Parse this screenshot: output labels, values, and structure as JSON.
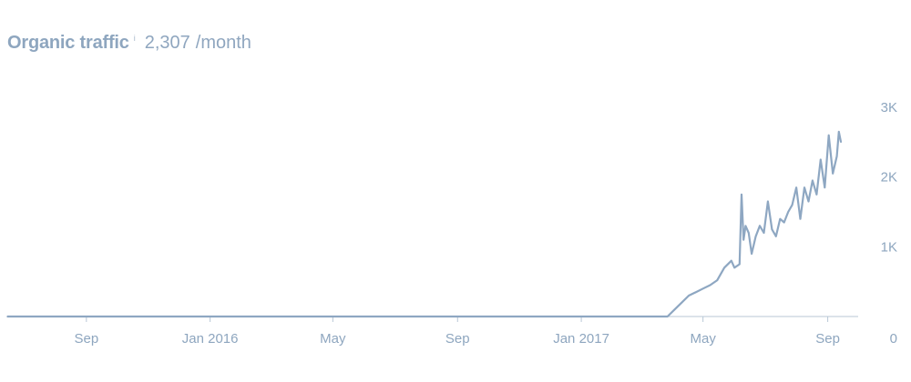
{
  "header": {
    "title": "Organic traffic",
    "info_icon": "info-icon",
    "value": "2,307",
    "unit": "/month"
  },
  "colors": {
    "line": "#8ea7c2",
    "baseline": "#b8c7d6",
    "text": "#8ea6bf"
  },
  "chart_data": {
    "type": "line",
    "title": "",
    "xlabel": "",
    "ylabel": "",
    "ylim": [
      0,
      3000
    ],
    "xlim": [
      "2015-06-15",
      "2017-10-01"
    ],
    "grid": false,
    "legend": "none",
    "x_ticks": [
      {
        "date": "2015-09-01",
        "label": "Sep"
      },
      {
        "date": "2016-01-01",
        "label": "Jan 2016"
      },
      {
        "date": "2016-05-01",
        "label": "May"
      },
      {
        "date": "2016-09-01",
        "label": "Sep"
      },
      {
        "date": "2017-01-01",
        "label": "Jan 2017"
      },
      {
        "date": "2017-05-01",
        "label": "May"
      },
      {
        "date": "2017-09-01",
        "label": "Sep"
      }
    ],
    "y_ticks": [
      {
        "value": 0,
        "label": "0"
      },
      {
        "value": 1000,
        "label": "1K"
      },
      {
        "value": 2000,
        "label": "2K"
      },
      {
        "value": 3000,
        "label": "3K"
      }
    ],
    "series": [
      {
        "x": [
          "2015-06-15",
          "2017-03-27",
          "2017-04-03",
          "2017-04-10",
          "2017-04-17",
          "2017-04-24",
          "2017-05-01",
          "2017-05-08",
          "2017-05-15",
          "2017-05-22",
          "2017-05-29",
          "2017-06-01",
          "2017-06-06",
          "2017-06-08",
          "2017-06-10",
          "2017-06-12",
          "2017-06-15",
          "2017-06-18",
          "2017-06-22",
          "2017-06-26",
          "2017-06-30",
          "2017-07-04",
          "2017-07-08",
          "2017-07-12",
          "2017-07-16",
          "2017-07-20",
          "2017-07-24",
          "2017-07-28",
          "2017-08-01",
          "2017-08-05",
          "2017-08-09",
          "2017-08-13",
          "2017-08-17",
          "2017-08-21",
          "2017-08-25",
          "2017-08-29",
          "2017-09-02",
          "2017-09-06",
          "2017-09-10",
          "2017-09-12",
          "2017-09-14"
        ],
        "values": [
          0,
          0,
          100,
          200,
          300,
          350,
          400,
          450,
          520,
          700,
          800,
          700,
          750,
          1750,
          1100,
          1300,
          1200,
          900,
          1150,
          1300,
          1200,
          1650,
          1250,
          1150,
          1400,
          1350,
          1500,
          1600,
          1850,
          1400,
          1850,
          1650,
          1950,
          1750,
          2250,
          1850,
          2600,
          2050,
          2300,
          2650,
          2500
        ]
      }
    ]
  }
}
